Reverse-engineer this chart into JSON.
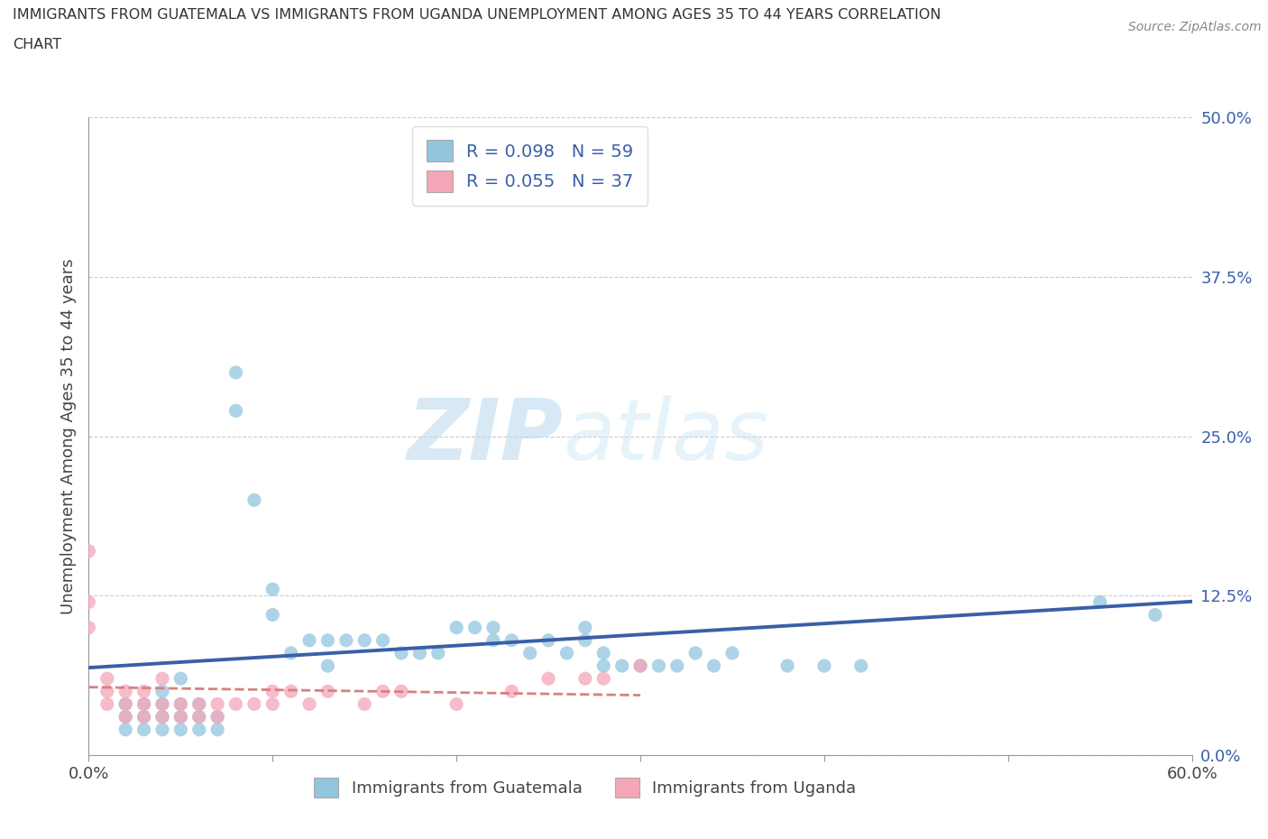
{
  "title_line1": "IMMIGRANTS FROM GUATEMALA VS IMMIGRANTS FROM UGANDA UNEMPLOYMENT AMONG AGES 35 TO 44 YEARS CORRELATION",
  "title_line2": "CHART",
  "source": "Source: ZipAtlas.com",
  "ylabel": "Unemployment Among Ages 35 to 44 years",
  "xlim": [
    0.0,
    0.6
  ],
  "ylim": [
    0.0,
    0.5
  ],
  "xticks": [
    0.0,
    0.1,
    0.2,
    0.3,
    0.4,
    0.5,
    0.6
  ],
  "xticklabels": [
    "0.0%",
    "",
    "",
    "",
    "",
    "",
    "60.0%"
  ],
  "yticks": [
    0.0,
    0.125,
    0.25,
    0.375,
    0.5
  ],
  "yticklabels": [
    "0.0%",
    "12.5%",
    "25.0%",
    "37.5%",
    "50.0%"
  ],
  "guatemala_color": "#92c5de",
  "uganda_color": "#f4a6b8",
  "guatemala_R": 0.098,
  "guatemala_N": 59,
  "uganda_R": 0.055,
  "uganda_N": 37,
  "legend_label1": "Immigrants from Guatemala",
  "legend_label2": "Immigrants from Uganda",
  "trend_color_blue": "#3a5fa8",
  "trend_color_pink": "#d98080",
  "watermark_zip": "ZIP",
  "watermark_atlas": "atlas",
  "watermark_color": "#c8e6f5",
  "guatemala_x": [
    0.2,
    0.02,
    0.02,
    0.02,
    0.03,
    0.03,
    0.03,
    0.04,
    0.04,
    0.04,
    0.04,
    0.05,
    0.05,
    0.05,
    0.05,
    0.06,
    0.06,
    0.06,
    0.07,
    0.07,
    0.08,
    0.08,
    0.09,
    0.1,
    0.1,
    0.11,
    0.12,
    0.13,
    0.13,
    0.14,
    0.15,
    0.16,
    0.17,
    0.18,
    0.19,
    0.2,
    0.21,
    0.22,
    0.22,
    0.23,
    0.24,
    0.25,
    0.26,
    0.27,
    0.27,
    0.28,
    0.28,
    0.29,
    0.3,
    0.31,
    0.32,
    0.33,
    0.34,
    0.35,
    0.38,
    0.4,
    0.42,
    0.55,
    0.58
  ],
  "guatemala_y": [
    0.47,
    0.02,
    0.03,
    0.04,
    0.02,
    0.03,
    0.04,
    0.02,
    0.03,
    0.04,
    0.05,
    0.02,
    0.03,
    0.04,
    0.06,
    0.02,
    0.03,
    0.04,
    0.02,
    0.03,
    0.27,
    0.3,
    0.2,
    0.11,
    0.13,
    0.08,
    0.09,
    0.07,
    0.09,
    0.09,
    0.09,
    0.09,
    0.08,
    0.08,
    0.08,
    0.1,
    0.1,
    0.09,
    0.1,
    0.09,
    0.08,
    0.09,
    0.08,
    0.09,
    0.1,
    0.07,
    0.08,
    0.07,
    0.07,
    0.07,
    0.07,
    0.08,
    0.07,
    0.08,
    0.07,
    0.07,
    0.07,
    0.12,
    0.11
  ],
  "uganda_x": [
    0.0,
    0.0,
    0.0,
    0.01,
    0.01,
    0.01,
    0.02,
    0.02,
    0.02,
    0.03,
    0.03,
    0.03,
    0.04,
    0.04,
    0.04,
    0.05,
    0.05,
    0.06,
    0.06,
    0.07,
    0.07,
    0.08,
    0.09,
    0.1,
    0.1,
    0.11,
    0.12,
    0.13,
    0.15,
    0.16,
    0.17,
    0.2,
    0.23,
    0.25,
    0.27,
    0.28,
    0.3
  ],
  "uganda_y": [
    0.16,
    0.1,
    0.12,
    0.04,
    0.05,
    0.06,
    0.03,
    0.04,
    0.05,
    0.03,
    0.04,
    0.05,
    0.03,
    0.04,
    0.06,
    0.03,
    0.04,
    0.03,
    0.04,
    0.03,
    0.04,
    0.04,
    0.04,
    0.04,
    0.05,
    0.05,
    0.04,
    0.05,
    0.04,
    0.05,
    0.05,
    0.04,
    0.05,
    0.06,
    0.06,
    0.06,
    0.07
  ]
}
